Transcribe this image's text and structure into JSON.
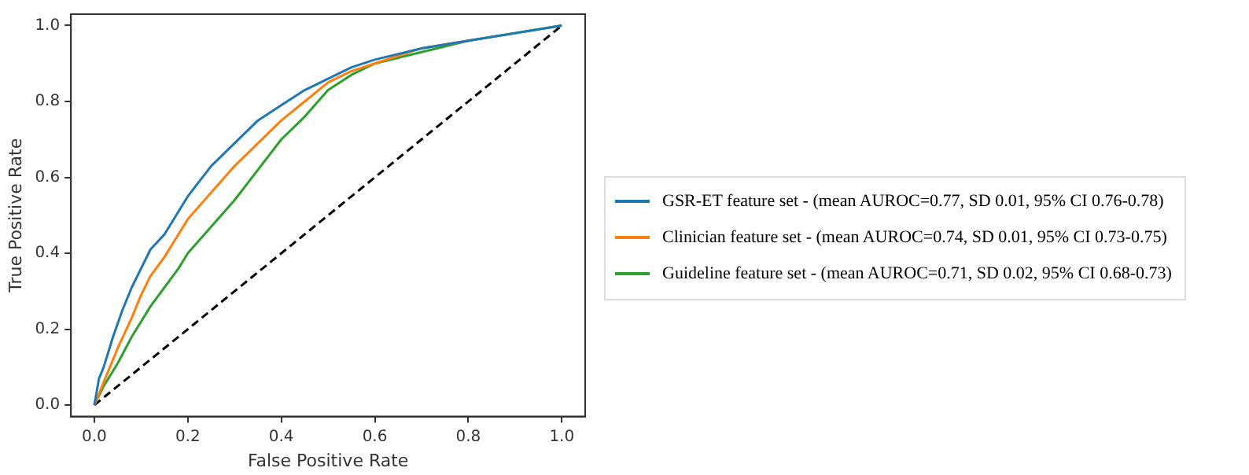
{
  "chart_data": {
    "type": "line",
    "xlabel": "False Positive Rate",
    "ylabel": "True Positive Rate",
    "xlim": [
      -0.05,
      1.05
    ],
    "ylim": [
      -0.03,
      1.03
    ],
    "xticks": [
      {
        "value": 0,
        "label": "0.0"
      },
      {
        "value": 0.2,
        "label": "0.2"
      },
      {
        "value": 0.4,
        "label": "0.4"
      },
      {
        "value": 0.6,
        "label": "0.6"
      },
      {
        "value": 0.8,
        "label": "0.8"
      },
      {
        "value": 1,
        "label": "1.0"
      }
    ],
    "yticks": [
      {
        "value": 0,
        "label": "0.0"
      },
      {
        "value": 0.2,
        "label": "0.2"
      },
      {
        "value": 0.4,
        "label": "0.4"
      },
      {
        "value": 0.6,
        "label": "0.6"
      },
      {
        "value": 0.8,
        "label": "0.8"
      },
      {
        "value": 1,
        "label": "1.0"
      }
    ],
    "grid": false,
    "legend": "right",
    "marker": "none",
    "series": [
      {
        "name": "GSR-ET feature set - (mean AUROC=0.77, SD 0.01, 95% CI 0.76-0.78)",
        "color": "#1f77b4",
        "x": [
          0,
          0.01,
          0.02,
          0.04,
          0.06,
          0.08,
          0.1,
          0.12,
          0.15,
          0.18,
          0.2,
          0.25,
          0.3,
          0.35,
          0.4,
          0.45,
          0.5,
          0.55,
          0.6,
          0.7,
          0.8,
          0.9,
          1
        ],
        "values": [
          0,
          0.07,
          0.1,
          0.18,
          0.25,
          0.31,
          0.36,
          0.41,
          0.45,
          0.51,
          0.55,
          0.63,
          0.69,
          0.75,
          0.79,
          0.83,
          0.86,
          0.89,
          0.91,
          0.94,
          0.96,
          0.98,
          1
        ]
      },
      {
        "name": "Clinician feature set - (mean AUROC=0.74, SD 0.01, 95% CI 0.73-0.75)",
        "color": "#ff7f0e",
        "x": [
          0,
          0.02,
          0.05,
          0.08,
          0.1,
          0.12,
          0.15,
          0.18,
          0.2,
          0.25,
          0.3,
          0.35,
          0.4,
          0.45,
          0.5,
          0.55,
          0.6,
          0.7,
          0.8
        ],
        "values": [
          0,
          0.06,
          0.15,
          0.23,
          0.29,
          0.34,
          0.39,
          0.45,
          0.49,
          0.56,
          0.63,
          0.69,
          0.75,
          0.8,
          0.85,
          0.88,
          0.9,
          0.94,
          0.96
        ]
      },
      {
        "name": "Guideline feature set - (mean AUROC=0.71, SD 0.02, 95% CI 0.68-0.73)",
        "color": "#2ca02c",
        "x": [
          0,
          0.02,
          0.05,
          0.08,
          0.1,
          0.12,
          0.15,
          0.18,
          0.2,
          0.25,
          0.3,
          0.35,
          0.4,
          0.45,
          0.5,
          0.55,
          0.6,
          0.7,
          0.8,
          1
        ],
        "values": [
          0,
          0.05,
          0.11,
          0.18,
          0.22,
          0.26,
          0.31,
          0.36,
          0.4,
          0.47,
          0.54,
          0.62,
          0.7,
          0.76,
          0.83,
          0.87,
          0.9,
          0.93,
          0.96,
          1
        ]
      },
      {
        "color": "#000000",
        "line_style": "dashed",
        "x": [
          0,
          1
        ],
        "values": [
          0,
          1
        ]
      }
    ]
  }
}
